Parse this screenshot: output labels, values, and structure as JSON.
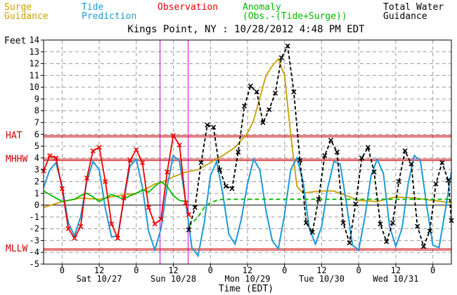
{
  "legend": {
    "surge_line1": "Surge",
    "surge_line2": "Guidance",
    "tide_line1": "Tide",
    "tide_line2": "Prediction",
    "obs_line1": "Observation",
    "anomaly_line1": "Anomaly",
    "anomaly_line2": "(Obs.-(Tide+Surge))",
    "total_line1": "Total Water",
    "total_line2": "Guidance"
  },
  "colors": {
    "surge": "#c8a000",
    "tide": "#1e9ad6",
    "observation": "#ee0000",
    "anomaly": "#00bb00",
    "total": "#000000",
    "datum": "#cc0000",
    "marker": "#cc00cc",
    "grid": "#9a9a9a"
  },
  "chart_data": {
    "type": "line",
    "title": "Kings Point, NY : 10/28/2012 4:48 PM EDT",
    "xlabel": "Time (EDT)",
    "ylabel": "Feet",
    "ylim": [
      -5,
      14
    ],
    "yticks": [
      -5,
      -4,
      -3,
      -2,
      -1,
      0,
      1,
      2,
      3,
      4,
      5,
      6,
      7,
      8,
      9,
      10,
      11,
      12,
      13,
      14
    ],
    "xlim": [
      -6,
      126
    ],
    "x_unit": "hours from 12 AM Sat 10/27",
    "x_ticks": [
      {
        "x": 0,
        "label": "0"
      },
      {
        "x": 12,
        "label": "12"
      },
      {
        "x": 24,
        "label": "0"
      },
      {
        "x": 36,
        "label": "12"
      },
      {
        "x": 48,
        "label": "0"
      },
      {
        "x": 60,
        "label": "12"
      },
      {
        "x": 72,
        "label": "0"
      },
      {
        "x": 84,
        "label": "12"
      },
      {
        "x": 96,
        "label": "0"
      },
      {
        "x": 108,
        "label": "12"
      },
      {
        "x": 120,
        "label": "0"
      }
    ],
    "day_labels": [
      {
        "x": 12,
        "label": "Sat 10/27"
      },
      {
        "x": 36,
        "label": "Sun 10/28"
      },
      {
        "x": 60,
        "label": "Mon 10/29"
      },
      {
        "x": 84,
        "label": "Tue 10/30"
      },
      {
        "x": 108,
        "label": "Wed 10/31"
      }
    ],
    "datums": [
      {
        "label": "HAT",
        "y": 5.9
      },
      {
        "label": "MHHW",
        "y": 3.9
      },
      {
        "label": "MLLW",
        "y": -3.7
      }
    ],
    "vertical_markers": [
      31.7,
      40.8
    ],
    "series": [
      {
        "name": "Tide Prediction",
        "x": [
          -6,
          -4,
          -2,
          0,
          2,
          4,
          6,
          8,
          10,
          12,
          14,
          16,
          18,
          20,
          22,
          24,
          26,
          28,
          30,
          32,
          34,
          36,
          38,
          40,
          42,
          44,
          46,
          48,
          50,
          52,
          54,
          56,
          58,
          60,
          62,
          64,
          66,
          68,
          70,
          72,
          74,
          76,
          78,
          80,
          82,
          84,
          86,
          88,
          90,
          92,
          94,
          96,
          98,
          100,
          102,
          104,
          106,
          108,
          110,
          112,
          114,
          116,
          118,
          120,
          122,
          124,
          126
        ],
        "y": [
          1.5,
          3.0,
          3.6,
          1.6,
          -1.5,
          -2.6,
          -1.0,
          2.0,
          3.7,
          3.0,
          -0.3,
          -2.7,
          -2.6,
          0.5,
          3.3,
          3.9,
          1.5,
          -2.2,
          -3.8,
          -2.0,
          1.6,
          4.2,
          3.7,
          0.3,
          -3.6,
          -4.3,
          -1.5,
          2.5,
          3.7,
          1.0,
          -2.5,
          -3.3,
          -1.2,
          1.8,
          3.9,
          3.0,
          -0.5,
          -3.0,
          -3.7,
          -0.8,
          3.0,
          4.0,
          2.0,
          -2.0,
          -3.3,
          -1.8,
          1.5,
          3.7,
          3.5,
          0.2,
          -3.4,
          -3.8,
          -1.0,
          2.5,
          3.9,
          2.7,
          -1.8,
          -3.5,
          -2.0,
          1.8,
          4.2,
          3.7,
          0.0,
          -3.4,
          -3.6,
          -0.5,
          2.8
        ]
      },
      {
        "name": "Observation",
        "x": [
          -6,
          -4,
          -2,
          0,
          2,
          4,
          6,
          8,
          10,
          12,
          14,
          16,
          18,
          20,
          22,
          24,
          26,
          28,
          30,
          32,
          34,
          36,
          38,
          40,
          41
        ],
        "y": [
          2.9,
          4.2,
          4.0,
          1.4,
          -2.0,
          -2.8,
          -1.8,
          2.3,
          4.6,
          4.9,
          2.0,
          -1.6,
          -2.8,
          0.6,
          3.8,
          4.7,
          3.6,
          -0.2,
          -1.6,
          -1.2,
          2.8,
          5.9,
          5.1,
          0.2,
          -0.8
        ]
      },
      {
        "name": "Anomaly",
        "x": [
          -6,
          -4,
          -2,
          0,
          2,
          4,
          6,
          8,
          10,
          12,
          14,
          16,
          18,
          20,
          22,
          24,
          26,
          28,
          30,
          32,
          34,
          36,
          38,
          40,
          41
        ],
        "y": [
          1.2,
          0.9,
          0.6,
          0.3,
          0.4,
          0.5,
          0.8,
          1.0,
          0.7,
          0.3,
          0.6,
          0.9,
          0.7,
          0.5,
          0.8,
          1.0,
          1.3,
          1.1,
          1.6,
          2.0,
          1.6,
          0.8,
          0.4,
          0.3,
          0.3
        ]
      },
      {
        "name": "Anomaly Guidance",
        "x": [
          41,
          44,
          46,
          48,
          50,
          52,
          126
        ],
        "y": [
          -1.8,
          -1.0,
          -0.2,
          0.2,
          0.4,
          0.5,
          0.5
        ]
      },
      {
        "name": "Surge Guidance",
        "x": [
          -6,
          0,
          6,
          12,
          18,
          24,
          28,
          30,
          32,
          36,
          40,
          44,
          48,
          52,
          56,
          58,
          60,
          62,
          64,
          66,
          68,
          70,
          72,
          74,
          76,
          78,
          80,
          84,
          88,
          90,
          96,
          102,
          108,
          114,
          120,
          126
        ],
        "y": [
          -0.2,
          0.3,
          0.6,
          0.5,
          0.8,
          1.0,
          1.5,
          1.8,
          1.9,
          2.4,
          2.8,
          3.0,
          3.6,
          4.2,
          4.9,
          5.5,
          6.1,
          7.2,
          9.1,
          11.0,
          11.8,
          12.4,
          11.0,
          6.0,
          1.6,
          1.0,
          1.1,
          1.2,
          1.2,
          1.0,
          0.4,
          0.3,
          0.7,
          0.6,
          0.4,
          0.2
        ]
      },
      {
        "name": "Total Water Guidance",
        "x": [
          41,
          43,
          45,
          47,
          49,
          51,
          53,
          55,
          57,
          59,
          61,
          63,
          65,
          67,
          69,
          71,
          73,
          75,
          77,
          79,
          81,
          83,
          85,
          87,
          89,
          91,
          93,
          95,
          97,
          99,
          101,
          103,
          105,
          107,
          109,
          111,
          113,
          115,
          117,
          119,
          121,
          123,
          125,
          126
        ],
        "y": [
          -2.1,
          -0.2,
          3.6,
          6.8,
          6.6,
          3.0,
          1.6,
          1.4,
          4.5,
          8.4,
          10.1,
          9.6,
          7.0,
          8.1,
          9.5,
          12.5,
          13.5,
          9.6,
          3.8,
          -1.5,
          -2.3,
          0.5,
          4.2,
          5.5,
          4.5,
          -1.5,
          -3.2,
          0.1,
          4.0,
          4.9,
          2.8,
          -1.6,
          -3.1,
          -1.5,
          2.0,
          4.6,
          3.5,
          -1.8,
          -3.5,
          -2.2,
          1.8,
          3.6,
          2.1,
          -1.3
        ]
      }
    ]
  }
}
